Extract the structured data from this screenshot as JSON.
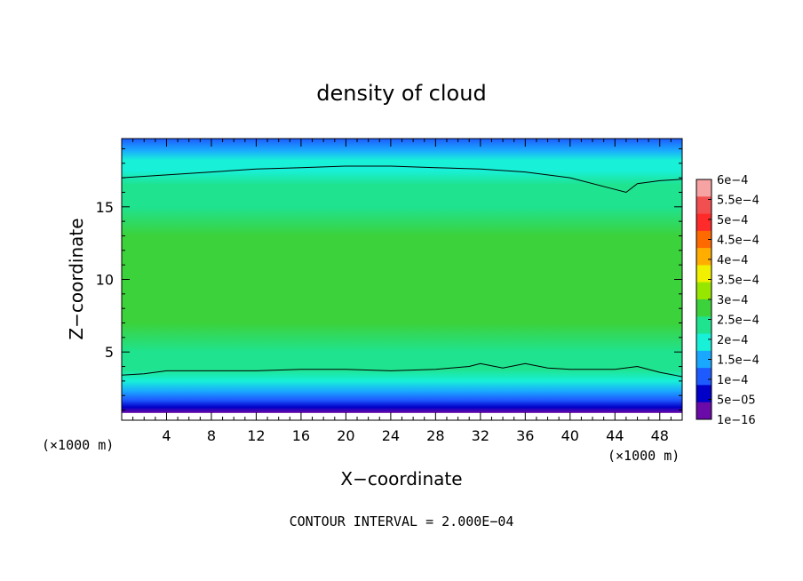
{
  "chart_data": {
    "type": "heatmap",
    "title": "density of cloud",
    "xlabel": "X−coordinate",
    "ylabel": "Z−coordinate",
    "x_unit_left": "(×1000 m)",
    "x_unit_right": "(×1000 m)",
    "xlim": [
      0,
      50
    ],
    "ylim": [
      0.3,
      19.7
    ],
    "x_ticks": [
      4,
      8,
      12,
      16,
      20,
      24,
      28,
      32,
      36,
      40,
      44,
      48
    ],
    "y_ticks": [
      5,
      10,
      15
    ],
    "footer": "CONTOUR INTERVAL = 2.000E−04",
    "colorbar": {
      "labels": [
        "6e−4",
        "5.5e−4",
        "5e−4",
        "4.5e−4",
        "4e−4",
        "3.5e−4",
        "3e−4",
        "2.5e−4",
        "2e−4",
        "1.5e−4",
        "1e−4",
        "5e−05",
        "1e−16"
      ],
      "levels": [
        0.0006,
        0.00055,
        0.0005,
        0.00045,
        0.0004,
        0.00035,
        0.0003,
        0.00025,
        0.0002,
        0.00015,
        0.0001,
        5e-05,
        1e-16
      ],
      "colors": [
        "#f7a3a3",
        "#f25050",
        "#ff2a2a",
        "#ff6a00",
        "#ffae00",
        "#f0f000",
        "#96e600",
        "#3cd23c",
        "#1fe38f",
        "#18f0d8",
        "#1aa8ff",
        "#1e5bff",
        "#0000c8",
        "#6a0aa8"
      ]
    },
    "profile_z": [
      0.8,
      1.2,
      1.7,
      2.3,
      3.0,
      3.8,
      5,
      7,
      9,
      11,
      13,
      15,
      16.5,
      17.5,
      18.2,
      18.9,
      19.7
    ],
    "profile_density": [
      1e-16,
      3e-05,
      6e-05,
      0.00011,
      0.00016,
      0.00021,
      0.000245,
      0.00027,
      0.000285,
      0.000285,
      0.00027,
      0.00025,
      0.000225,
      0.000195,
      0.00016,
      0.00012,
      9e-05
    ],
    "contour_2e-4_upper_x": [
      0,
      4,
      8,
      12,
      16,
      20,
      24,
      28,
      32,
      36,
      40,
      44,
      45,
      46,
      48,
      50
    ],
    "contour_2e-4_upper_z": [
      17.0,
      17.2,
      17.4,
      17.6,
      17.7,
      17.8,
      17.8,
      17.7,
      17.6,
      17.4,
      17.0,
      16.2,
      16.0,
      16.6,
      16.8,
      16.9
    ],
    "contour_2e-4_lower_x": [
      0,
      2,
      4,
      8,
      12,
      16,
      20,
      24,
      28,
      31,
      32,
      34,
      36,
      38,
      40,
      44,
      46,
      48,
      50
    ],
    "contour_2e-4_lower_z": [
      3.4,
      3.5,
      3.7,
      3.7,
      3.7,
      3.8,
      3.8,
      3.7,
      3.8,
      4.0,
      4.2,
      3.9,
      4.2,
      3.9,
      3.8,
      3.8,
      4.0,
      3.6,
      3.3
    ]
  }
}
